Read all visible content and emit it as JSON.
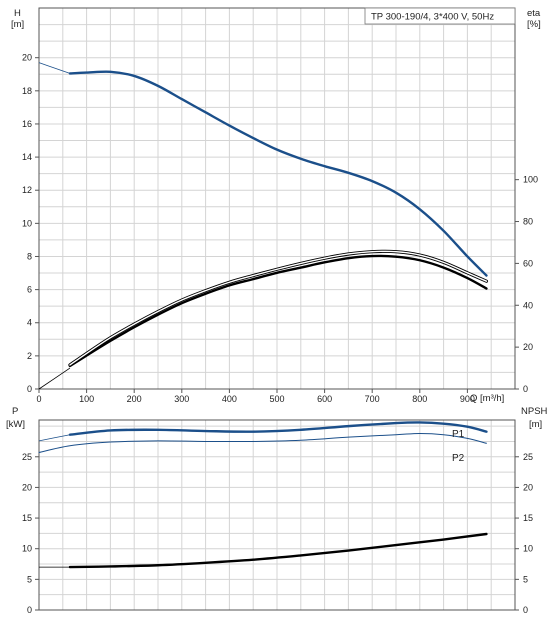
{
  "chart_data": [
    {
      "type": "line",
      "title": "TP 300-190/4, 3*400 V, 50Hz",
      "xlabel": "Q [m³/h]",
      "ylabel_left": [
        "H",
        "[m]"
      ],
      "ylabel_right": [
        "eta",
        "[%]"
      ],
      "xlim": [
        0,
        1000
      ],
      "ylim_left": [
        0,
        23
      ],
      "ylim_right": [
        0,
        182
      ],
      "grid": true,
      "x_ticks": [
        "0",
        "100",
        "200",
        "300",
        "400",
        "500",
        "600",
        "700",
        "800",
        "900"
      ],
      "y_ticks_left": [
        "0",
        "2",
        "4",
        "6",
        "8",
        "10",
        "12",
        "14",
        "16",
        "18",
        "20"
      ],
      "y_ticks_right": [
        "0",
        "20",
        "40",
        "60",
        "80",
        "100"
      ],
      "series": [
        {
          "axis": "left",
          "color": "#1b4f8a",
          "thin_prefix": [
            [
              0,
              19.7
            ],
            [
              30,
              19.4
            ],
            [
              65,
              19.05
            ]
          ],
          "points": [
            [
              65,
              19.05
            ],
            [
              100,
              19.1
            ],
            [
              150,
              19.15
            ],
            [
              200,
              18.9
            ],
            [
              250,
              18.3
            ],
            [
              300,
              17.5
            ],
            [
              350,
              16.7
            ],
            [
              400,
              15.9
            ],
            [
              450,
              15.15
            ],
            [
              500,
              14.45
            ],
            [
              550,
              13.9
            ],
            [
              600,
              13.45
            ],
            [
              650,
              13.05
            ],
            [
              700,
              12.55
            ],
            [
              750,
              11.85
            ],
            [
              800,
              10.85
            ],
            [
              850,
              9.55
            ],
            [
              900,
              8.0
            ],
            [
              940,
              6.85
            ]
          ]
        },
        {
          "axis": "right",
          "color": "#000000",
          "thin_prefix": [
            [
              0,
              0
            ],
            [
              65,
              10
            ]
          ],
          "points": [
            [
              65,
              11
            ],
            [
              100,
              16
            ],
            [
              150,
              23
            ],
            [
              200,
              29.5
            ],
            [
              250,
              35.5
            ],
            [
              300,
              41
            ],
            [
              350,
              45.5
            ],
            [
              400,
              49.5
            ],
            [
              450,
              52.5
            ],
            [
              500,
              55.5
            ],
            [
              550,
              58
            ],
            [
              600,
              60.5
            ],
            [
              650,
              62.5
            ],
            [
              700,
              63.5
            ],
            [
              750,
              63.2
            ],
            [
              800,
              61.5
            ],
            [
              850,
              58
            ],
            [
              900,
              53
            ],
            [
              940,
              48
            ]
          ]
        },
        {
          "axis": "right",
          "color": "#000000",
          "outline": true,
          "points": [
            [
              65,
              11.5
            ],
            [
              100,
              17
            ],
            [
              150,
              24.5
            ],
            [
              200,
              31
            ],
            [
              250,
              37
            ],
            [
              300,
              42.5
            ],
            [
              350,
              47
            ],
            [
              400,
              51
            ],
            [
              450,
              54.2
            ],
            [
              500,
              57.2
            ],
            [
              550,
              60
            ],
            [
              600,
              62.5
            ],
            [
              650,
              64.5
            ],
            [
              700,
              65.6
            ],
            [
              750,
              65.6
            ],
            [
              800,
              64
            ],
            [
              850,
              60.5
            ],
            [
              900,
              55.5
            ],
            [
              940,
              51.5
            ]
          ]
        }
      ]
    },
    {
      "type": "line",
      "ylabel_left": [
        "P",
        "[kW]"
      ],
      "ylabel_right": [
        "NPSH",
        "[m]"
      ],
      "xlim": [
        0,
        1000
      ],
      "ylim_left": [
        0,
        31
      ],
      "ylim_right": [
        0,
        31
      ],
      "grid": true,
      "y_ticks_left": [
        "0",
        "5",
        "10",
        "15",
        "20",
        "25"
      ],
      "y_ticks_right": [
        "0",
        "5",
        "10",
        "15",
        "20",
        "25"
      ],
      "series": [
        {
          "name": "P1",
          "axis": "left",
          "color": "#1b4f8a",
          "thin_prefix": [
            [
              0,
              27.6
            ],
            [
              65,
              28.6
            ]
          ],
          "points": [
            [
              65,
              28.6
            ],
            [
              150,
              29.3
            ],
            [
              250,
              29.4
            ],
            [
              350,
              29.2
            ],
            [
              450,
              29.1
            ],
            [
              550,
              29.4
            ],
            [
              650,
              30.0
            ],
            [
              750,
              30.5
            ],
            [
              800,
              30.6
            ],
            [
              850,
              30.4
            ],
            [
              900,
              29.9
            ],
            [
              940,
              29.1
            ]
          ]
        },
        {
          "name": "P2",
          "axis": "left",
          "color": "#1b4f8a",
          "thin": true,
          "points": [
            [
              0,
              25.7
            ],
            [
              65,
              26.8
            ],
            [
              150,
              27.4
            ],
            [
              250,
              27.6
            ],
            [
              350,
              27.5
            ],
            [
              450,
              27.5
            ],
            [
              550,
              27.7
            ],
            [
              650,
              28.2
            ],
            [
              750,
              28.6
            ],
            [
              800,
              28.8
            ],
            [
              850,
              28.6
            ],
            [
              900,
              28.0
            ],
            [
              940,
              27.2
            ]
          ]
        },
        {
          "axis": "right",
          "color": "#000000",
          "thin_prefix": [
            [
              0,
              7.0
            ],
            [
              65,
              7.0
            ]
          ],
          "points": [
            [
              65,
              7.0
            ],
            [
              150,
              7.1
            ],
            [
              250,
              7.3
            ],
            [
              350,
              7.7
            ],
            [
              450,
              8.2
            ],
            [
              550,
              8.9
            ],
            [
              650,
              9.7
            ],
            [
              750,
              10.6
            ],
            [
              850,
              11.5
            ],
            [
              940,
              12.4
            ]
          ]
        }
      ]
    }
  ]
}
